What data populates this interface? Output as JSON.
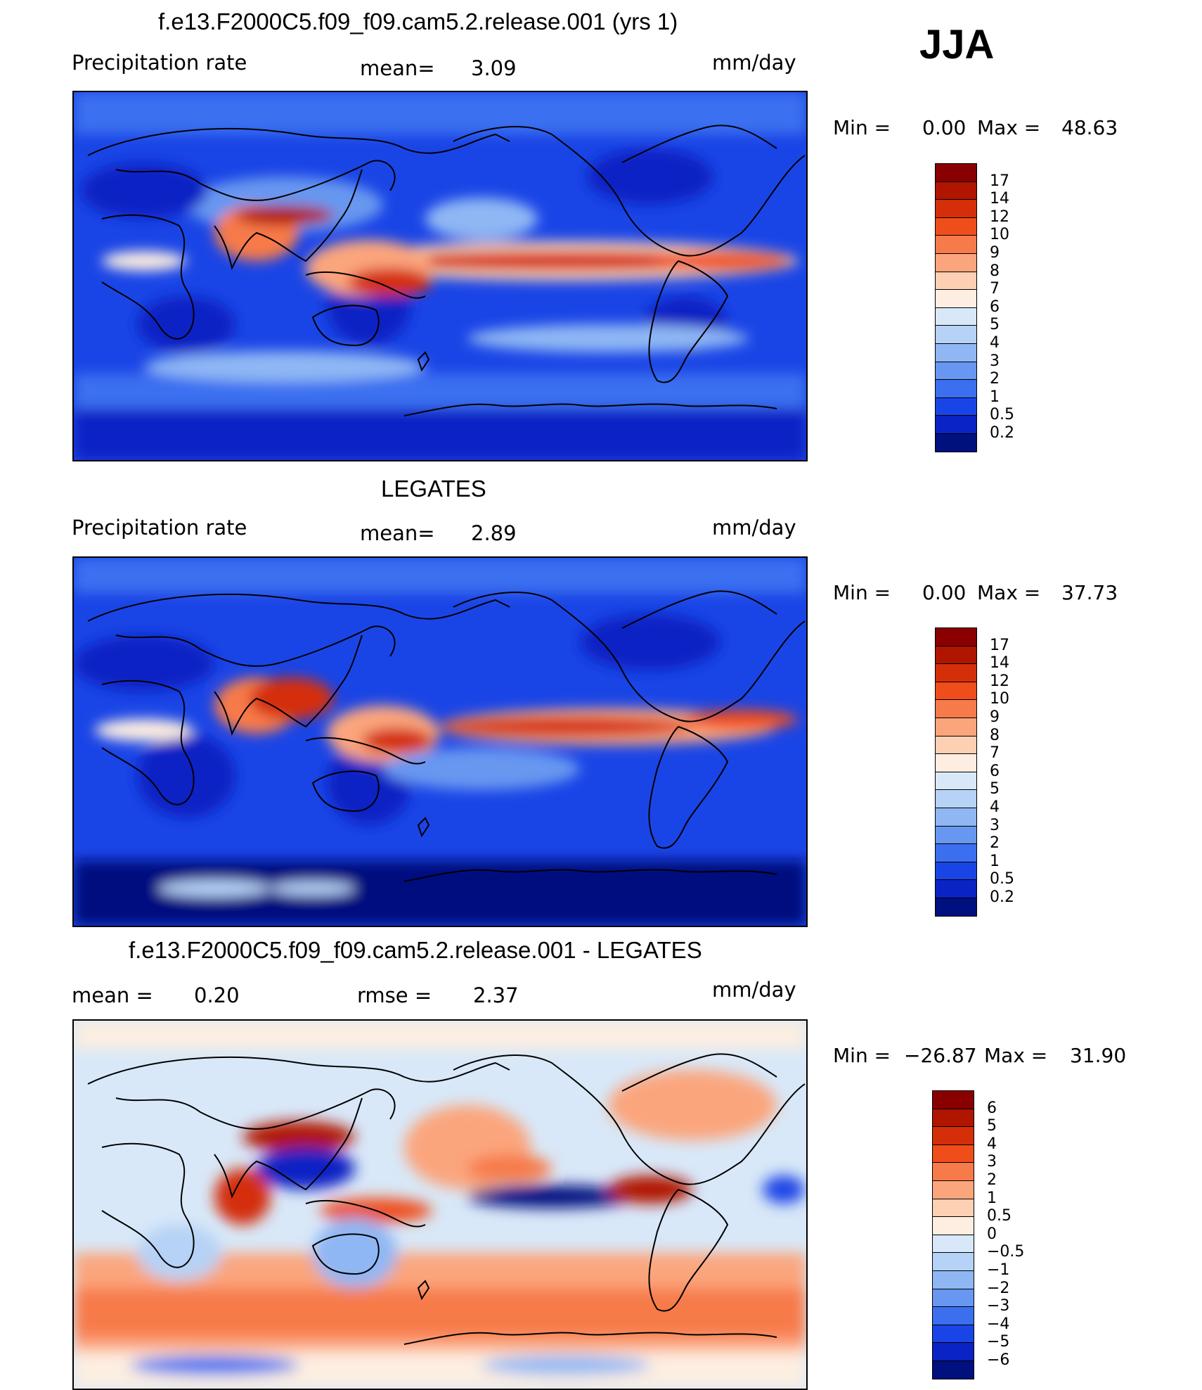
{
  "season": "JJA",
  "panels": [
    {
      "title": "f.e13.F2000C5.f09_f09.cam5.2.release.001 (yrs 1)",
      "left_label": "Precipitation  rate",
      "center_label": "mean=",
      "center_value": "3.09",
      "units": "mm/day",
      "min_label": "Min  =",
      "min_value": "0.00",
      "max_label": "Max  =",
      "max_value": "48.63",
      "colorbar_ticks": [
        "17",
        "14",
        "12",
        "10",
        "9",
        "8",
        "7",
        "6",
        "5",
        "4",
        "3",
        "2",
        "1",
        "0.5",
        "0.2"
      ],
      "colorbar_colors": [
        "#8a0000",
        "#b01500",
        "#d42f08",
        "#ef4e1a",
        "#f77a4a",
        "#fba57d",
        "#fdcfb3",
        "#fdeee1",
        "#d8e8f8",
        "#b6d2f6",
        "#8fb7f4",
        "#6797f0",
        "#3b6ff0",
        "#1a45e6",
        "#0a23c4",
        "#00107f"
      ]
    },
    {
      "title": "LEGATES",
      "left_label": "Precipitation  rate",
      "center_label": "mean=",
      "center_value": "2.89",
      "units": "mm/day",
      "min_label": "Min  =",
      "min_value": "0.00",
      "max_label": "Max  =",
      "max_value": "37.73",
      "colorbar_ticks": [
        "17",
        "14",
        "12",
        "10",
        "9",
        "8",
        "7",
        "6",
        "5",
        "4",
        "3",
        "2",
        "1",
        "0.5",
        "0.2"
      ],
      "colorbar_colors": [
        "#8a0000",
        "#b01500",
        "#d42f08",
        "#ef4e1a",
        "#f77a4a",
        "#fba57d",
        "#fdcfb3",
        "#fdeee1",
        "#d8e8f8",
        "#b6d2f6",
        "#8fb7f4",
        "#6797f0",
        "#3b6ff0",
        "#1a45e6",
        "#0a23c4",
        "#00107f"
      ]
    },
    {
      "title": "f.e13.F2000C5.f09_f09.cam5.2.release.001 - LEGATES",
      "left_label": "mean  =",
      "left_value": "0.20",
      "center_label": "rmse  =",
      "center_value": "2.37",
      "units": "mm/day",
      "min_label": "Min  =",
      "min_value": "−26.87",
      "max_label": "Max  =",
      "max_value": "31.90",
      "colorbar_ticks": [
        "6",
        "5",
        "4",
        "3",
        "2",
        "1",
        "0.5",
        "0",
        "−0.5",
        "−1",
        "−2",
        "−3",
        "−4",
        "−5",
        "−6"
      ],
      "colorbar_colors": [
        "#8a0000",
        "#b01500",
        "#d42f08",
        "#ef4e1a",
        "#f77a4a",
        "#fba57d",
        "#fdcfb3",
        "#fdeee1",
        "#d8e8f8",
        "#b6d2f6",
        "#8fb7f4",
        "#6797f0",
        "#3b6ff0",
        "#1a45e6",
        "#0a23c4",
        "#00107f"
      ]
    }
  ]
}
